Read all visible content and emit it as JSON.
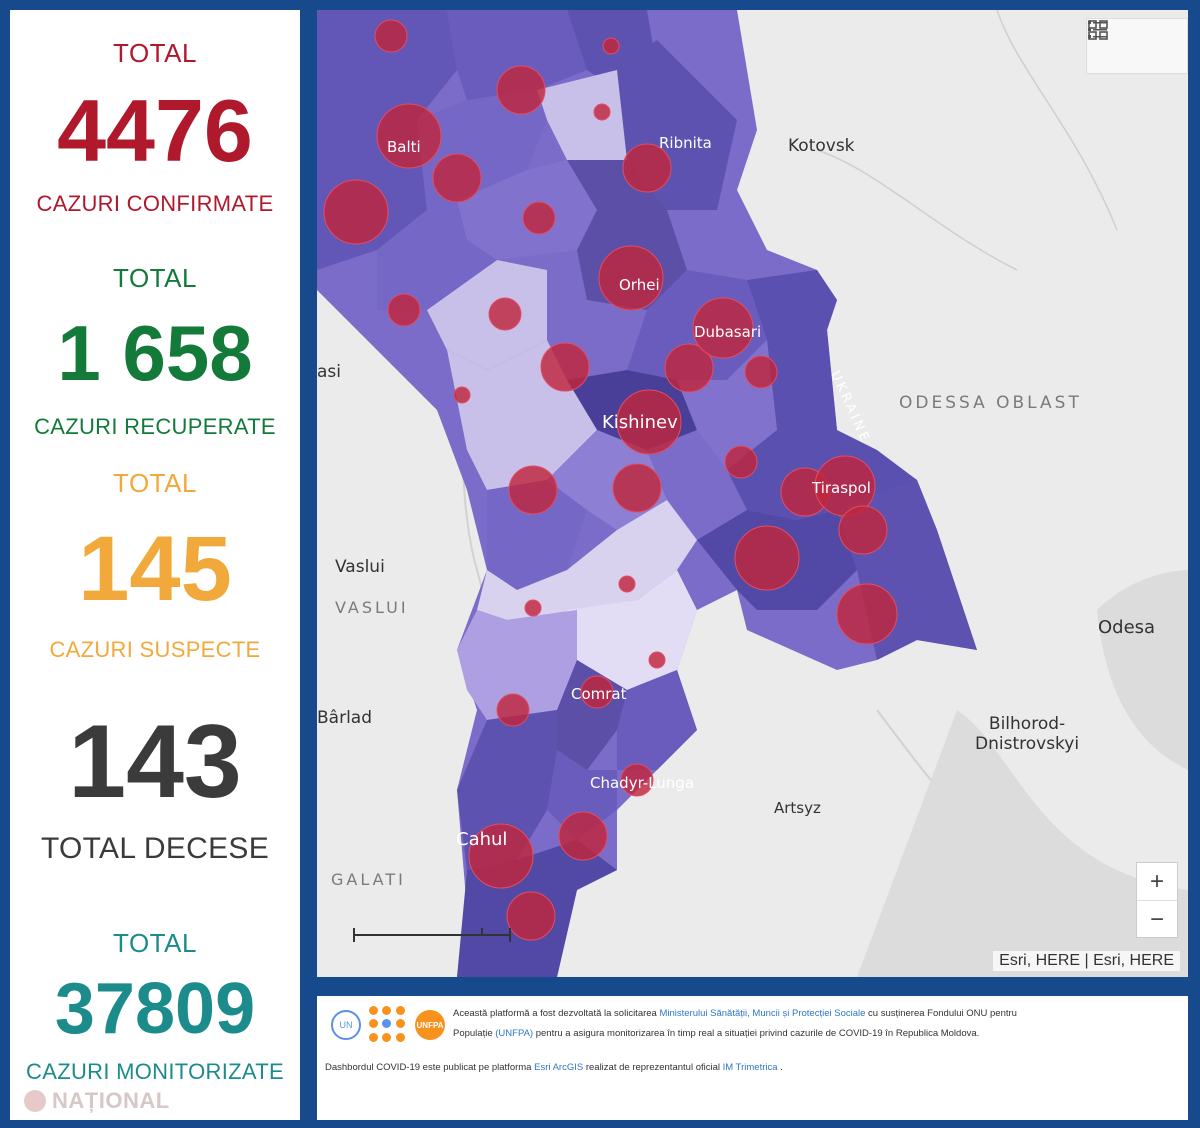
{
  "stats": {
    "confirmed": {
      "top": "TOTAL",
      "value": "4476",
      "bottom": "CAZURI CONFIRMATE",
      "color": "#b0182c"
    },
    "recovered": {
      "top": "TOTAL",
      "value": "1 658",
      "bottom": "CAZURI RECUPERATE",
      "color": "#137a3a"
    },
    "suspected": {
      "top": "TOTAL",
      "value": "145",
      "bottom": "CAZURI SUSPECTE",
      "color": "#f2a93b"
    },
    "deaths": {
      "value": "143",
      "bottom": "TOTAL DECESE",
      "color": "#3b3b3b"
    },
    "monitored": {
      "top": "TOTAL",
      "value": "37809",
      "bottom": "CAZURI MONITORIZATE",
      "color": "#1c8b8c"
    }
  },
  "brand": "NAȚIONAL",
  "map": {
    "labels": {
      "balti": "Balti",
      "ribnita": "Ribnita",
      "kotovsk": "Kotovsk",
      "orhei": "Orhei",
      "dubasari": "Dubasari",
      "iasi": "asi",
      "ukraine": "UKRAINE",
      "odessa_oblast": "ODESSA OBLAST",
      "kishinev": "Kishinev",
      "tiraspol": "Tiraspol",
      "vaslui_city": "Vaslui",
      "vaslui_region": "VASLUI",
      "odesa": "Odesa",
      "comrat": "Comrat",
      "barlad": "Bârlad",
      "bilhorod": "Bilhorod-\nDnistrovskyi",
      "chadyr": "Chadyr-Lunga",
      "artsyz": "Artsyz",
      "cahul": "Cahul",
      "galati": "GALATI"
    },
    "attribution": "Esri, HERE | Esri, HERE",
    "zoom_in": "+",
    "zoom_out": "−",
    "icons": [
      "legend-list-icon",
      "basemap-gallery-icon"
    ]
  },
  "footer": {
    "line1_a": "Această platformă a fost dezvoltată la solicitarea",
    "line1_link": "Ministerului Sănătății, Muncii și Protecției Sociale",
    "line1_b": "cu susținerea Fondului ONU pentru",
    "line2_a": "Populație",
    "line2_link": "(UNFPA)",
    "line2_b": "pentru a asigura monitorizarea în timp real a situației privind cazurile de COVID-19 în Republica Moldova.",
    "line3_a": "Dashbordul COVID-19 este publicat pe platforma",
    "line3_link1": "Esri ArcGIS",
    "line3_b": "realizat de reprezentantul oficial",
    "line3_link2": "IM Trimetrica",
    "line3_c": ".",
    "unfpa": "UNFPA"
  }
}
